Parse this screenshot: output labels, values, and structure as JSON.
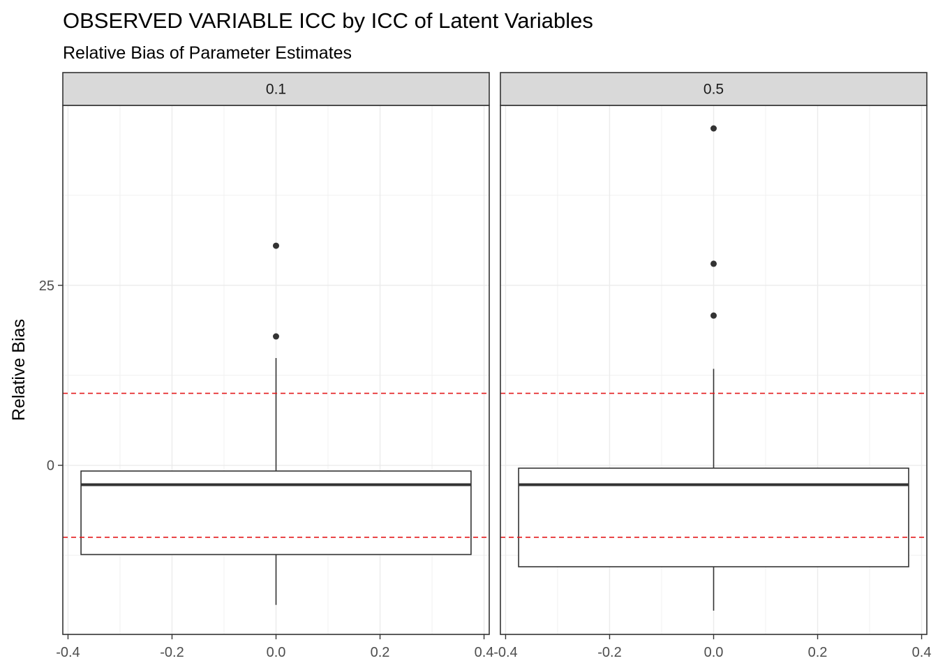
{
  "chart_data": {
    "type": "boxplot",
    "title": "OBSERVED VARIABLE ICC by ICC of Latent Variables",
    "subtitle": "Relative Bias of Parameter Estimates",
    "xlabel": "",
    "ylabel": "Relative Bias",
    "xlim": [
      -0.41,
      0.41
    ],
    "ylim": [
      -23.5,
      50
    ],
    "x_ticks": [
      "-0.4",
      "-0.2",
      "0.0",
      "0.2",
      "0.4"
    ],
    "y_ticks": [
      "0",
      "25"
    ],
    "x_tick_values": [
      -0.4,
      -0.2,
      0.0,
      0.2,
      0.4
    ],
    "y_tick_values": [
      0,
      25
    ],
    "grid": true,
    "reference_lines": {
      "values": [
        10,
        -10
      ],
      "color": "#e41a1c",
      "style": "dashed"
    },
    "box_x_range": [
      -0.375,
      0.375
    ],
    "panels": [
      {
        "label": "0.1",
        "box": {
          "x": 0.0,
          "lower_whisker": -19.4,
          "q1": -12.4,
          "median": -2.7,
          "q3": -0.8,
          "upper_whisker": 14.9
        },
        "outliers": [
          17.9,
          30.5
        ]
      },
      {
        "label": "0.5",
        "box": {
          "x": 0.0,
          "lower_whisker": -20.2,
          "q1": -14.1,
          "median": -2.7,
          "q3": -0.4,
          "upper_whisker": 13.4
        },
        "outliers": [
          20.8,
          28.0,
          46.8
        ]
      }
    ]
  }
}
